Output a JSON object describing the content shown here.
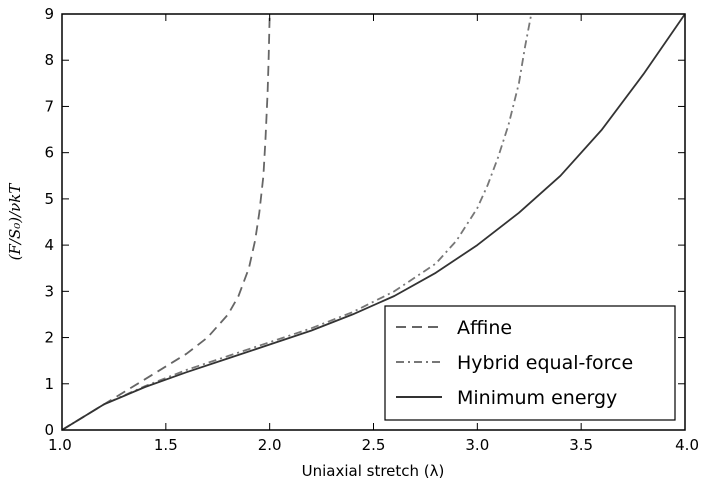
{
  "chart_data": {
    "type": "line",
    "xlabel": "Uniaxial stretch (λ)",
    "ylabel": "(F/S₀)/νkT",
    "xlim": [
      1.0,
      4.0
    ],
    "ylim": [
      0,
      9
    ],
    "xticks": [
      "1.0",
      "1.5",
      "2.0",
      "2.5",
      "3.0",
      "3.5",
      "4.0"
    ],
    "yticks": [
      "0",
      "1",
      "2",
      "3",
      "4",
      "5",
      "6",
      "7",
      "8",
      "9"
    ],
    "grid": false,
    "legend_position": "bottom-right",
    "series": [
      {
        "name": "Affine",
        "style": "dashed",
        "color": "#666666",
        "x": [
          1.0,
          1.2,
          1.4,
          1.6,
          1.7,
          1.8,
          1.85,
          1.9,
          1.93,
          1.95,
          1.97,
          1.98,
          1.99,
          1.995,
          2.0
        ],
        "y": [
          0,
          0.55,
          1.1,
          1.65,
          2.0,
          2.5,
          2.9,
          3.5,
          4.1,
          4.7,
          5.5,
          6.3,
          7.3,
          8.0,
          9.0
        ]
      },
      {
        "name": "Hybrid equal-force",
        "style": "dashdot",
        "color": "#777777",
        "x": [
          1.0,
          1.2,
          1.4,
          1.6,
          1.8,
          2.0,
          2.2,
          2.4,
          2.6,
          2.8,
          2.9,
          3.0,
          3.05,
          3.1,
          3.15,
          3.2,
          3.23,
          3.26
        ],
        "y": [
          0,
          0.55,
          0.95,
          1.3,
          1.6,
          1.9,
          2.2,
          2.55,
          3.0,
          3.6,
          4.1,
          4.8,
          5.3,
          5.9,
          6.6,
          7.5,
          8.3,
          9.0
        ]
      },
      {
        "name": "Minimum energy",
        "style": "solid",
        "color": "#333333",
        "x": [
          1.0,
          1.2,
          1.4,
          1.6,
          1.8,
          2.0,
          2.2,
          2.4,
          2.6,
          2.8,
          3.0,
          3.2,
          3.4,
          3.6,
          3.8,
          4.0
        ],
        "y": [
          0,
          0.55,
          0.93,
          1.25,
          1.55,
          1.85,
          2.15,
          2.5,
          2.9,
          3.4,
          4.0,
          4.7,
          5.5,
          6.5,
          7.7,
          9.0
        ]
      }
    ]
  }
}
